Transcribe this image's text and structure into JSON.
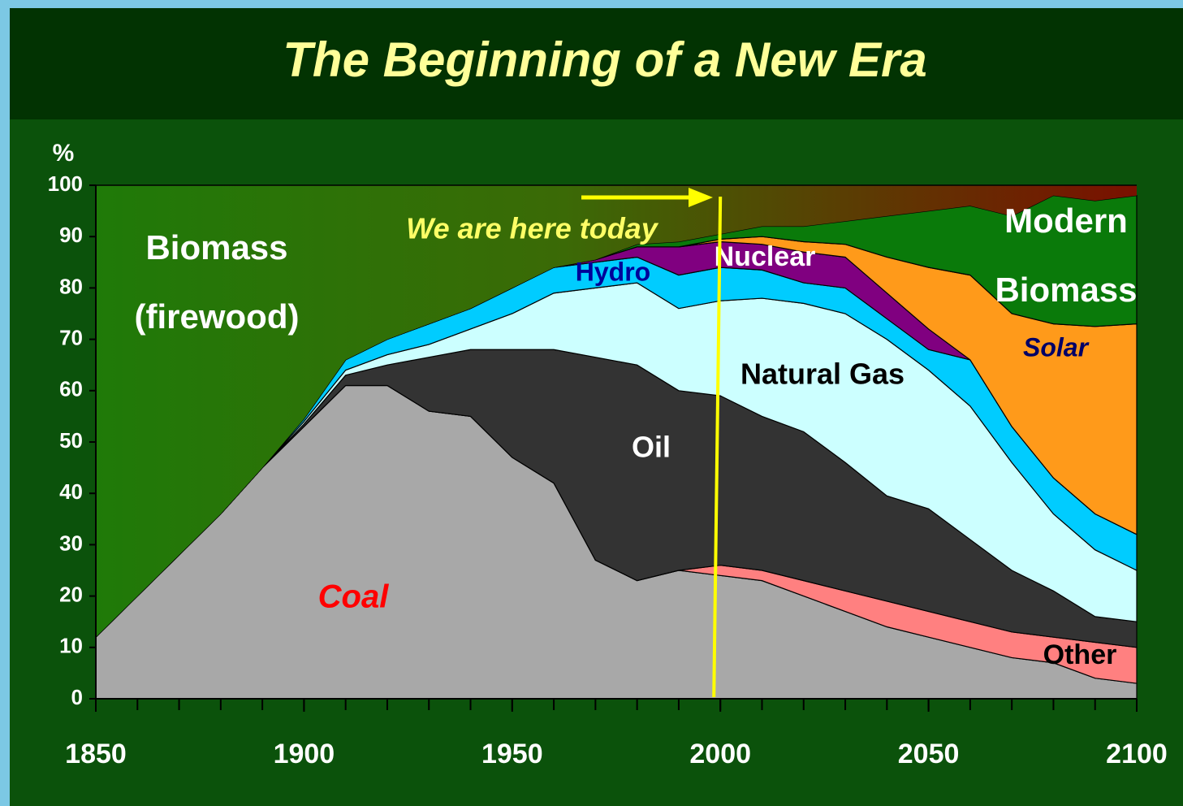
{
  "chart_data": {
    "type": "stacked_area",
    "title": "The Beginning of a New Era",
    "y_label": "%",
    "x": [
      1850,
      1860,
      1870,
      1880,
      1890,
      1900,
      1910,
      1920,
      1930,
      1940,
      1950,
      1960,
      1970,
      1980,
      1990,
      2000,
      2010,
      2020,
      2030,
      2040,
      2050,
      2060,
      2070,
      2080,
      2090,
      2100
    ],
    "series": [
      {
        "name": "Coal",
        "color": "#a8a8a8",
        "label_color": "#ff0000",
        "values": [
          12,
          20,
          28,
          36,
          45,
          53,
          61,
          61,
          56,
          55,
          47,
          42,
          27,
          23,
          25,
          24,
          23,
          20,
          17,
          14,
          12,
          10,
          8,
          7,
          4,
          3
        ]
      },
      {
        "name": "Other",
        "color": "#ff8080",
        "label_color": "#000000",
        "values": [
          0,
          0,
          0,
          0,
          0,
          0,
          0,
          0,
          0,
          0,
          0,
          0,
          0,
          0,
          0,
          2,
          2,
          3,
          4,
          5,
          5,
          5,
          5,
          5,
          7,
          7
        ]
      },
      {
        "name": "Oil",
        "color": "#333333",
        "label_color": "#ffffff",
        "values": [
          0,
          0,
          0,
          0,
          0,
          0.5,
          2,
          4,
          10.5,
          13,
          21,
          26,
          39.5,
          42,
          35,
          33,
          30,
          29,
          25,
          20.5,
          20,
          16,
          12,
          9,
          5,
          5
        ]
      },
      {
        "name": "Natural Gas",
        "color": "#ccffff",
        "label_color": "#000000",
        "values": [
          0,
          0,
          0,
          0,
          0,
          0.5,
          1,
          2,
          2.5,
          4,
          7,
          11,
          13.5,
          16,
          16,
          18.5,
          23,
          25,
          29,
          30.5,
          27,
          26,
          21,
          15,
          13,
          10
        ]
      },
      {
        "name": "Hydro",
        "color": "#00ccff",
        "label_color": "#000099",
        "values": [
          0,
          0,
          0,
          0,
          0,
          0.5,
          2,
          3,
          4,
          4,
          5,
          5,
          5,
          5,
          6.5,
          6.5,
          5.5,
          4,
          5,
          4,
          4,
          9,
          7,
          7,
          7,
          7
        ]
      },
      {
        "name": "Nuclear",
        "color": "#800080",
        "label_color": "#ffffff",
        "values": [
          0,
          0,
          0,
          0,
          0,
          0,
          0,
          0,
          0,
          0,
          0,
          0,
          0.5,
          2,
          5.5,
          5,
          5,
          6,
          6,
          5,
          4,
          0,
          0,
          0,
          0,
          0
        ]
      },
      {
        "name": "Solar",
        "color": "#ff9a1a",
        "label_color": "#000066",
        "values": [
          0,
          0,
          0,
          0,
          0,
          0,
          0,
          0,
          0,
          0,
          0,
          0,
          0,
          0,
          0,
          0.5,
          1.5,
          2,
          2.5,
          7,
          12,
          16.5,
          22,
          30,
          36.5,
          41
        ]
      },
      {
        "name": "Modern Biomass",
        "color": "#0a7a0a",
        "label_color": "#ffffff",
        "values": [
          0,
          0,
          0,
          0,
          0,
          0,
          0,
          0,
          0,
          0,
          0,
          0,
          0,
          0.5,
          1,
          1,
          2,
          3,
          4.5,
          8,
          11,
          13.5,
          19,
          25,
          24.5,
          25
        ]
      },
      {
        "name": "Biomass (firewood)",
        "color": "#2a7a0c",
        "label_color": "#ffffff",
        "values": [
          88,
          80,
          72,
          64,
          55,
          45.5,
          34,
          30,
          27,
          24,
          20,
          16,
          14.5,
          11.5,
          11,
          9.5,
          8,
          8,
          7,
          6,
          5,
          4,
          6,
          2,
          3,
          2
        ]
      }
    ],
    "annotation": {
      "text": "We are here today",
      "x": 2000,
      "color": "#ffff00"
    },
    "xlim": [
      1850,
      2100
    ],
    "xticks": [
      1850,
      1900,
      1950,
      2000,
      2050,
      2100
    ],
    "ylim": [
      0,
      100
    ],
    "yticks": [
      0,
      10,
      20,
      30,
      40,
      50,
      60,
      70,
      80,
      90,
      100
    ]
  }
}
